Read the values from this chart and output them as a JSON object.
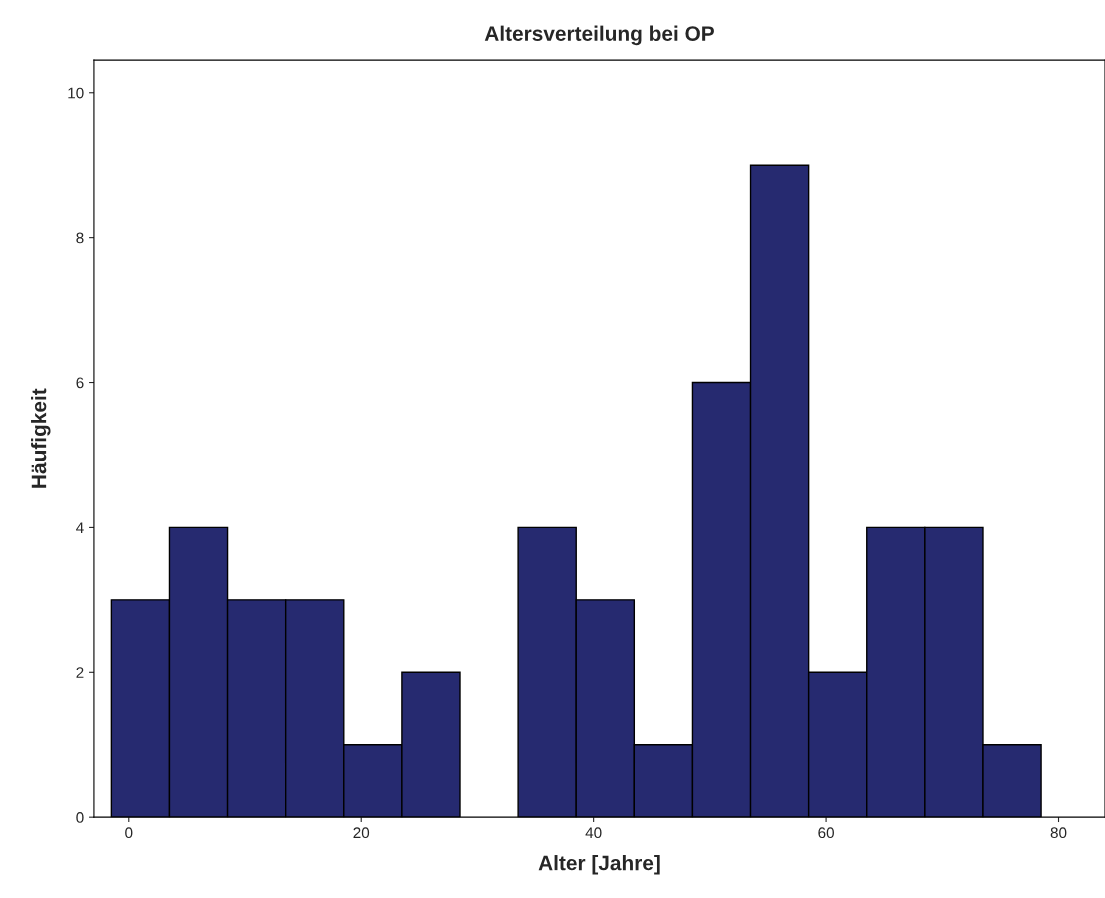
{
  "chart_data": {
    "type": "histogram",
    "title": "Altersverteilung bei OP",
    "xlabel": "Alter [Jahre]",
    "ylabel": "Häufigkeit",
    "bins": [
      -1.5,
      3.5,
      8.5,
      13.5,
      18.5,
      23.5,
      28.5,
      33.5,
      38.5,
      43.5,
      48.5,
      53.5,
      58.5,
      63.5,
      68.5,
      73.5,
      78.5
    ],
    "values": [
      3,
      4,
      3,
      3,
      1,
      2,
      0,
      4,
      3,
      1,
      6,
      9,
      2,
      4,
      4,
      1
    ],
    "color": "#262a70",
    "xlim": [
      -3,
      84
    ],
    "ylim": [
      0,
      10.45
    ],
    "xticks": [
      0,
      20,
      40,
      60,
      80
    ],
    "yticks": [
      0,
      2,
      4,
      6,
      8,
      10
    ],
    "grid": false
  }
}
